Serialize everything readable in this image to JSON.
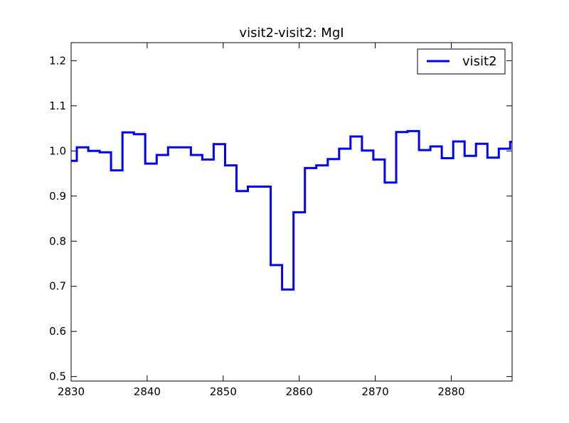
{
  "chart_data": {
    "type": "line",
    "title": "visit2-visit2: MgI",
    "xlabel": "",
    "ylabel": "",
    "xlim": [
      2830,
      2888
    ],
    "ylim": [
      0.49,
      1.24
    ],
    "x_ticks": [
      2830,
      2840,
      2850,
      2860,
      2870,
      2880
    ],
    "y_ticks": [
      0.5,
      0.6,
      0.7,
      0.8,
      0.9,
      1.0,
      1.1,
      1.2
    ],
    "x_tick_labels": [
      "2830",
      "2840",
      "2850",
      "2860",
      "2870",
      "2880"
    ],
    "y_tick_labels": [
      "0.5",
      "0.6",
      "0.7",
      "0.8",
      "0.9",
      "1.0",
      "1.1",
      "1.2"
    ],
    "grid": false,
    "legend_position": "top-right",
    "step": "mid",
    "series": [
      {
        "name": "visit2",
        "color": "#0000ff",
        "x": [
          2830.0,
          2831.5,
          2833.0,
          2834.5,
          2836.0,
          2837.5,
          2839.0,
          2840.5,
          2842.0,
          2843.5,
          2845.0,
          2846.5,
          2848.0,
          2849.5,
          2851.0,
          2852.5,
          2854.0,
          2855.5,
          2857.0,
          2858.5,
          2860.0,
          2861.5,
          2863.0,
          2864.5,
          2866.0,
          2867.5,
          2869.0,
          2870.5,
          2872.0,
          2873.5,
          2875.0,
          2876.5,
          2878.0,
          2879.5,
          2881.0,
          2882.5,
          2884.0,
          2885.5,
          2887.0,
          2888.5
        ],
        "y": [
          0.978,
          1.008,
          1.0,
          0.997,
          0.957,
          1.041,
          1.037,
          0.972,
          0.991,
          1.008,
          1.008,
          0.991,
          0.981,
          1.015,
          0.968,
          0.911,
          0.921,
          0.921,
          0.747,
          0.693,
          0.864,
          0.962,
          0.968,
          0.982,
          1.005,
          1.032,
          1.001,
          0.981,
          0.93,
          1.042,
          1.044,
          1.002,
          1.01,
          0.984,
          1.021,
          0.989,
          1.016,
          0.985,
          1.005,
          1.02
        ]
      }
    ]
  }
}
